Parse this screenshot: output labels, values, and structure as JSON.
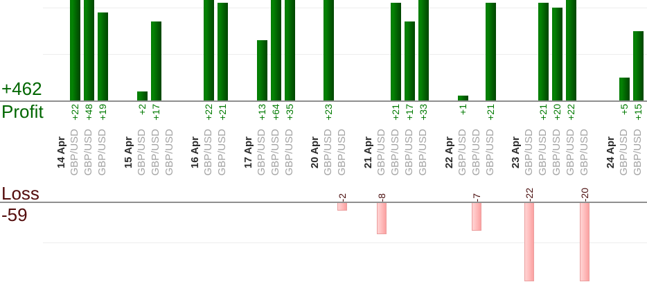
{
  "chart_data": {
    "type": "bar",
    "title": "",
    "instrument": "GBP/USD",
    "profit": {
      "axis_label": "Profit",
      "total": "+462",
      "gridline_values": [
        10,
        20
      ],
      "bars_clipped_at_top": true
    },
    "loss": {
      "axis_label": "Loss",
      "total": "-59",
      "gridline_values": [
        10
      ],
      "visible_max": 20,
      "bars_clipped_at_bottom": true
    },
    "groups": [
      {
        "date": "14 Apr",
        "values": [
          22,
          48,
          19
        ]
      },
      {
        "date": "15 Apr",
        "values": [
          2,
          17,
          null
        ]
      },
      {
        "date": "16 Apr",
        "values": [
          22,
          21
        ]
      },
      {
        "date": "17 Apr",
        "values": [
          13,
          64,
          35
        ]
      },
      {
        "date": "20 Apr",
        "values": [
          23,
          -2
        ]
      },
      {
        "date": "21 Apr",
        "values": [
          -8,
          21,
          17,
          33
        ]
      },
      {
        "date": "22 Apr",
        "values": [
          1,
          -7,
          21
        ]
      },
      {
        "date": "23 Apr",
        "values": [
          -22,
          21,
          20,
          22,
          -20
        ]
      },
      {
        "date": "24 Apr",
        "values": [
          5,
          15
        ]
      }
    ]
  },
  "colors": {
    "profit_bar": "#038203",
    "profit_bar_dark": "#014501",
    "profit_text": "#006600",
    "profit_value_text": "#007a00",
    "loss_bar_fill": "#ffc2c2",
    "loss_bar_border": "#eb9e9e",
    "loss_text": "#530c0c",
    "date_text": "#2b2b2b",
    "instrument_text": "#a3a3a3",
    "axis_line": "#8f8f8f",
    "gridline": "#ededed"
  }
}
